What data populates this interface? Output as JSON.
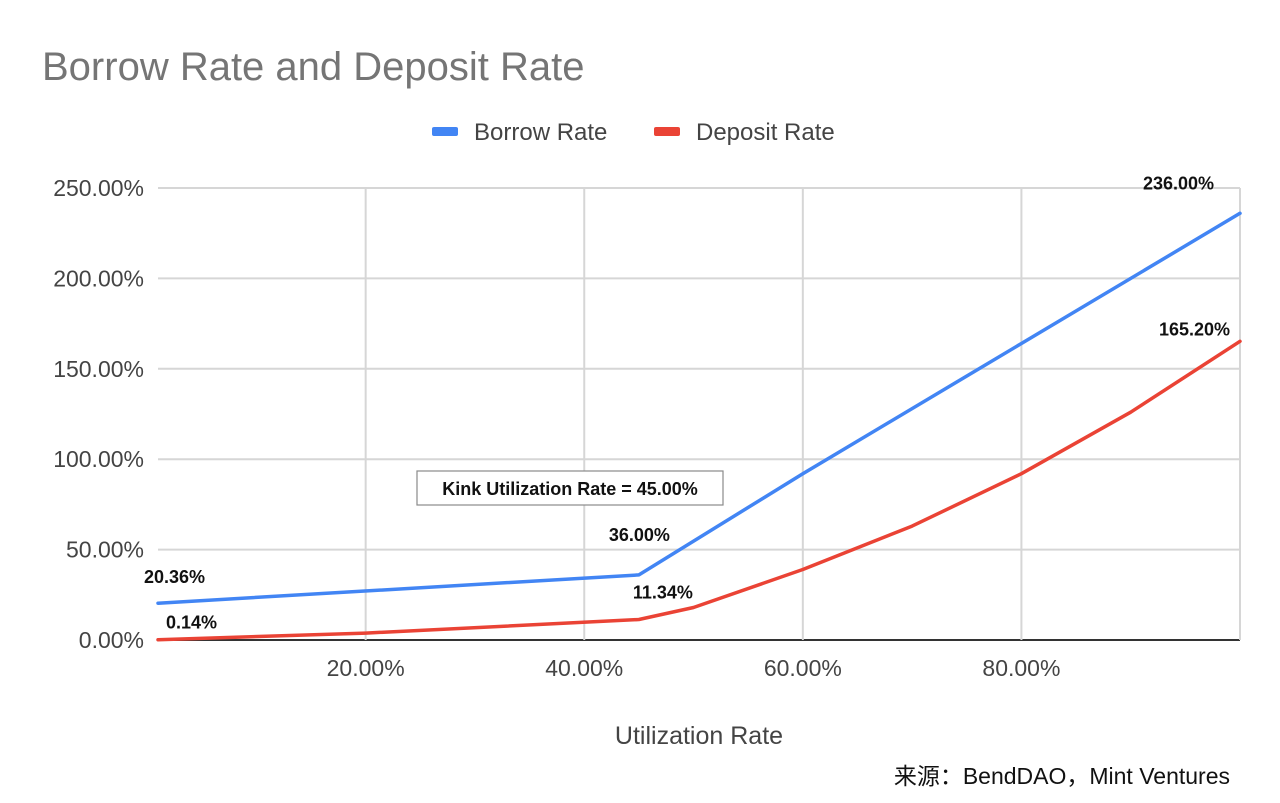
{
  "chart_data": {
    "type": "line",
    "title": "Borrow Rate and Deposit Rate",
    "xlabel": "Utilization Rate",
    "ylabel": "",
    "x_ticks": [
      "20.00%",
      "40.00%",
      "60.00%",
      "80.00%"
    ],
    "y_ticks": [
      "0.00%",
      "50.00%",
      "100.00%",
      "150.00%",
      "200.00%",
      "250.00%"
    ],
    "xlim": [
      0.01,
      1.0
    ],
    "ylim": [
      0,
      250
    ],
    "grid": true,
    "legend_position": "top",
    "series": [
      {
        "name": "Borrow Rate",
        "color": "#4285f4",
        "points": [
          [
            0.01,
            20.36
          ],
          [
            0.45,
            36.0
          ],
          [
            0.6,
            92.0
          ],
          [
            0.8,
            164.0
          ],
          [
            1.0,
            236.0
          ]
        ]
      },
      {
        "name": "Deposit Rate",
        "color": "#ea4335",
        "points": [
          [
            0.01,
            0.14
          ],
          [
            0.2,
            3.8
          ],
          [
            0.45,
            11.34
          ],
          [
            0.5,
            18.0
          ],
          [
            0.6,
            39.0
          ],
          [
            0.7,
            63.0
          ],
          [
            0.8,
            92.0
          ],
          [
            0.9,
            126.0
          ],
          [
            1.0,
            165.2
          ]
        ]
      }
    ],
    "data_labels": [
      {
        "text": "20.36%",
        "x": 0.01,
        "y": 20.36
      },
      {
        "text": "0.14%",
        "x": 0.01,
        "y": 0.14
      },
      {
        "text": "36.00%",
        "x": 0.45,
        "y": 36.0
      },
      {
        "text": "11.34%",
        "x": 0.45,
        "y": 11.34
      },
      {
        "text": "236.00%",
        "x": 1.0,
        "y": 236.0
      },
      {
        "text": "165.20%",
        "x": 1.0,
        "y": 165.2
      }
    ],
    "annotation": "Kink Utilization Rate = 45.00%"
  },
  "source_note": "来源：BendDAO，Mint Ventures"
}
